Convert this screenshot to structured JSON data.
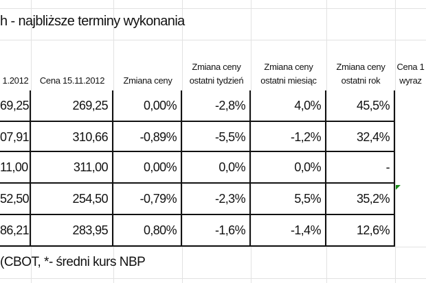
{
  "title": "h - najbliższe terminy wykonania",
  "table": {
    "header": [
      "1.2012",
      "Cena 15.11.2012",
      "Zmiana ceny",
      "Zmiana ceny\nostatni tydzień",
      "Zmiana ceny\nostatni miesiąc",
      "Zmiana ceny\nostatni rok",
      "Cena 1\nwyraz"
    ],
    "rows": [
      [
        "69,25",
        "269,25",
        "0,00%",
        "-2,8%",
        "4,0%",
        "45,5%"
      ],
      [
        "07,91",
        "310,66",
        "-0,89%",
        "-5,5%",
        "-1,2%",
        "32,4%"
      ],
      [
        "11,00",
        "311,00",
        "0,00%",
        "0,0%",
        "0,0%",
        "-"
      ],
      [
        "52,50",
        "254,50",
        "-0,79%",
        "-2,3%",
        "5,5%",
        "35,2%"
      ],
      [
        "86,21",
        "283,95",
        "0,80%",
        "-1,6%",
        "-1,4%",
        "12,6%"
      ]
    ]
  },
  "footer": "(CBOT, *- średni kurs NBP"
}
